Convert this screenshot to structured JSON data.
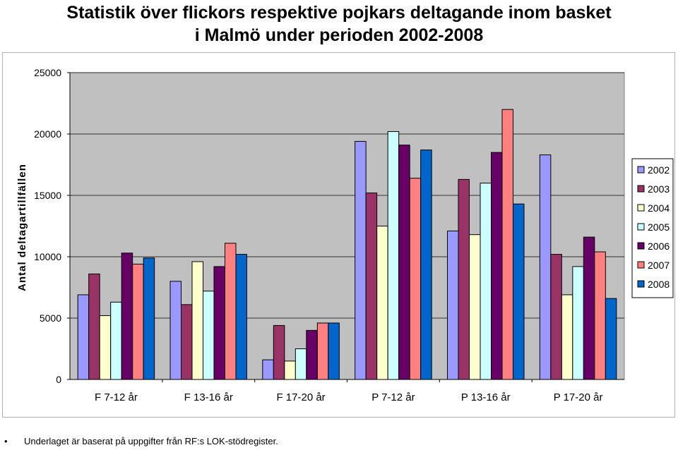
{
  "title_line1": "Statistik över flickors respektive pojkars deltagande inom basket",
  "title_line2": "i Malmö under perioden 2002-2008",
  "footnote": "Underlaget är baserat på uppgifter från RF:s LOK-stödregister.",
  "footnote_bullet": "•",
  "chart_data": {
    "type": "bar",
    "ylabel": "Antal deltagartillfällen",
    "xlabel": "",
    "ylim": [
      0,
      25000
    ],
    "yticks": [
      0,
      5000,
      10000,
      15000,
      20000,
      25000
    ],
    "grid": true,
    "legend": "right",
    "categories": [
      "F 7-12 år",
      "F 13-16 år",
      "F 17-20 år",
      "P 7-12 år",
      "P 13-16 år",
      "P 17-20 år"
    ],
    "series": [
      {
        "name": "2002",
        "color": "#9999ff",
        "values": [
          6900,
          8000,
          1600,
          19400,
          12100,
          18300
        ]
      },
      {
        "name": "2003",
        "color": "#993366",
        "values": [
          8600,
          6100,
          4400,
          15200,
          16300,
          10200
        ]
      },
      {
        "name": "2004",
        "color": "#ffffcc",
        "values": [
          5200,
          9600,
          1500,
          12500,
          11800,
          6900
        ]
      },
      {
        "name": "2005",
        "color": "#ccffff",
        "values": [
          6300,
          7200,
          2500,
          20200,
          16000,
          9200
        ]
      },
      {
        "name": "2006",
        "color": "#660066",
        "values": [
          10300,
          9200,
          4000,
          19100,
          18500,
          11600
        ]
      },
      {
        "name": "2007",
        "color": "#ff8080",
        "values": [
          9400,
          11100,
          4600,
          16400,
          22000,
          10400
        ]
      },
      {
        "name": "2008",
        "color": "#0066cc",
        "values": [
          9900,
          10200,
          4600,
          18700,
          14300,
          6600
        ]
      }
    ]
  }
}
